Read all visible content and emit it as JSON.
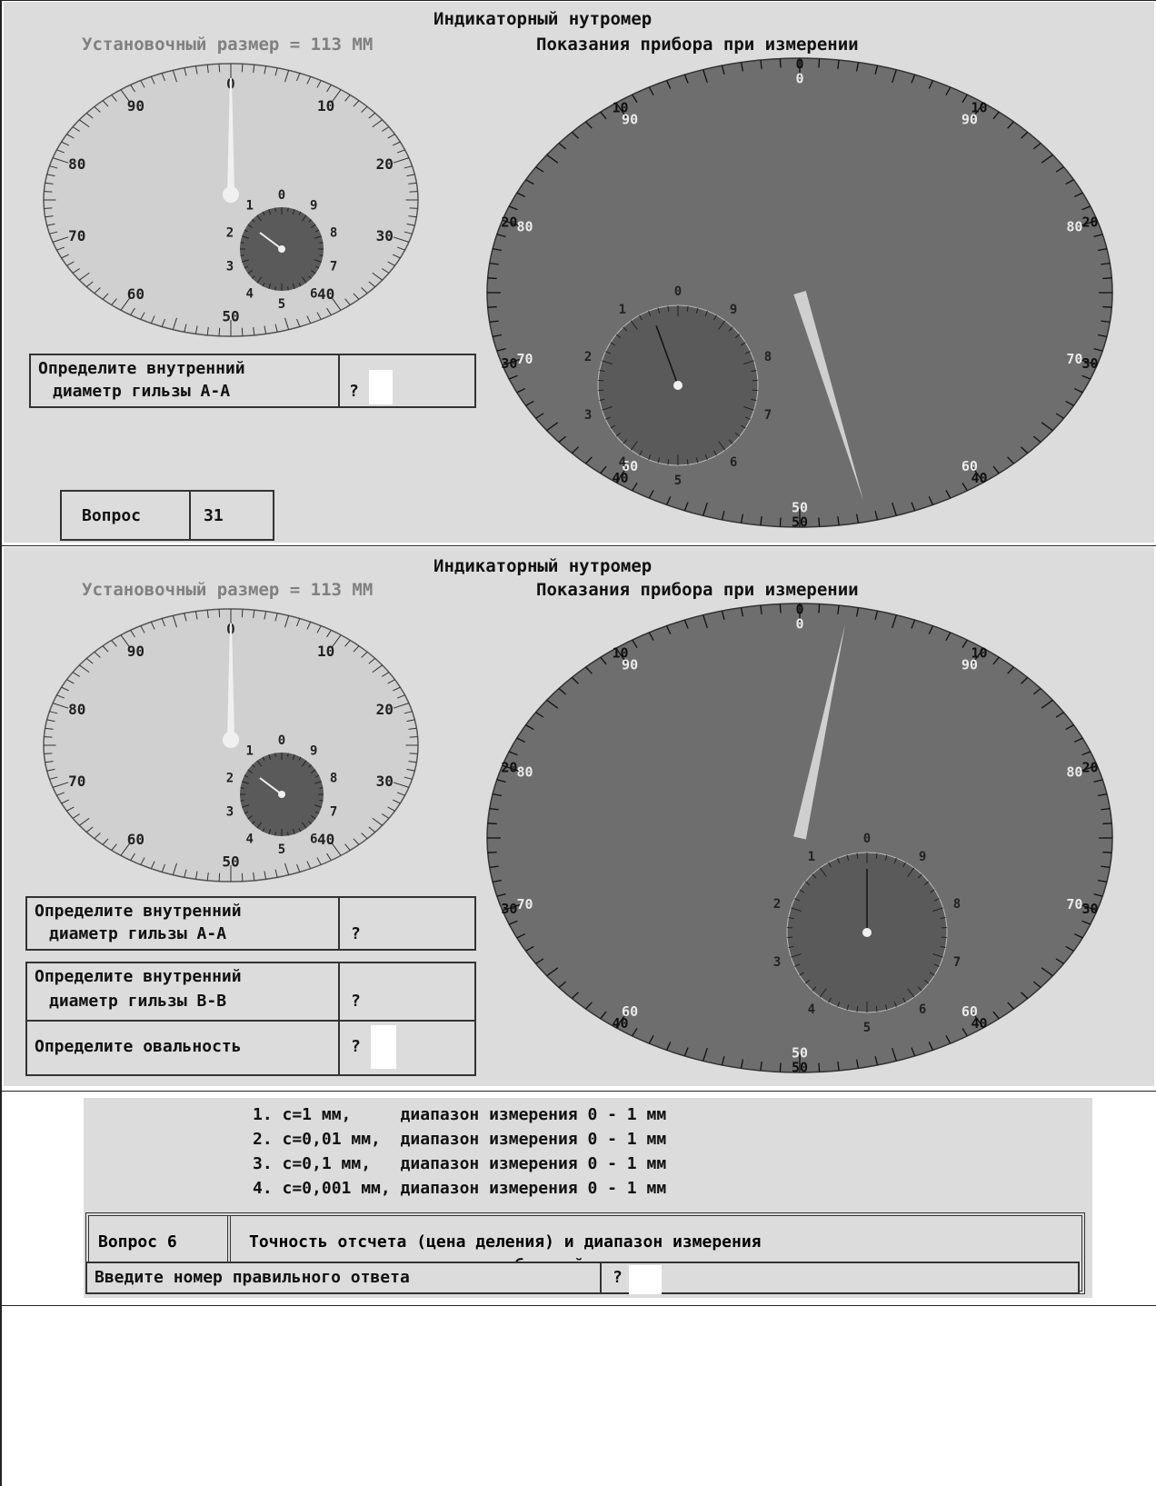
{
  "panel1": {
    "title": "Индикаторный нутромер",
    "setup_size": "Установочный размер = 113 ММ",
    "readings_label": "Показания прибора при измерении",
    "question_text_line1": "Определите внутренний",
    "question_text_line2": "диаметр гильзы А-А",
    "question_mark": "?",
    "question_label": "Вопрос",
    "question_number": "31"
  },
  "panel2": {
    "title": "Индикаторный нутромер",
    "setup_size": "Установочный размер = 113 ММ",
    "readings_label": "Показания прибора при измерении",
    "q1_line1": "Определите внутренний",
    "q1_line2": "диаметр гильзы А-А",
    "q2_line1": "Определите внутренний",
    "q2_line2": "диаметр гильзы В-В",
    "q3_text": "Определите овальность",
    "question_mark": "?"
  },
  "panel3": {
    "options": [
      "1. с=1 мм,     диапазон измерения 0 - 1 мм",
      "2. с=0,01 мм,  диапазон измерения 0 - 1 мм",
      "3. с=0,1 мм,   диапазон измерения 0 - 1 мм",
      "4. с=0,001 мм, диапазон измерения 0 - 1 мм"
    ],
    "question_label": "Вопрос 6",
    "question_text_line1": "Точность отсчета (цена деления) и диапазон измерения",
    "question_text_line2": "индикаторного нутромера по большой шкале",
    "answer_prompt": "Введите номер правильного ответа",
    "question_mark": "?"
  },
  "dial_labels": {
    "small_big": [
      "0",
      "10",
      "20",
      "30",
      "40",
      "50",
      "60",
      "70",
      "80",
      "90"
    ],
    "small_inner": [
      "0",
      "9",
      "8",
      "7",
      "6",
      "5",
      "4",
      "3",
      "2",
      "1"
    ],
    "big_outer": [
      "0",
      "10",
      "20",
      "30",
      "40",
      "50",
      "40",
      "30",
      "20",
      "10"
    ],
    "big_inner": [
      "0",
      "90",
      "80",
      "70",
      "60",
      "50",
      "60",
      "70",
      "80",
      "90"
    ]
  },
  "colors": {
    "panel_bg": "#dcdcdc",
    "small_dial_face": "#d0d0d0",
    "big_dial_face": "#6e6e6e",
    "sub_dial_face": "#5a5a5a",
    "needle": "#f0f0f0"
  }
}
